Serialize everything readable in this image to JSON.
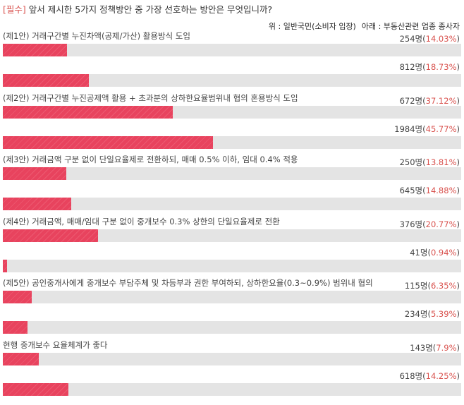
{
  "question": {
    "tag": "[필수]",
    "text": "앞서 제시한 5가지 정책방안 중 가장 선호하는 방안은 무엇입니까?"
  },
  "legend": {
    "upper_label": "위 : 일반국민(소비자 입장)",
    "lower_label": "아래 : 부동산관련 업종 종사자"
  },
  "colors": {
    "bar": "#e8435e",
    "track": "#e4e4e4",
    "percent": "#d9534f"
  },
  "chart_data": {
    "type": "bar",
    "orientation": "horizontal",
    "xlim": [
      0,
      100
    ],
    "categories": [
      "(제1안) 거래구간별 누진차액(공제/가산) 활용방식 도입",
      "(제2안) 거래구간별 누진공제액 활용 + 초과분의 상하한요율범위내 협의 혼용방식 도입",
      "(제3안) 거래금액 구분 없이 단일요율제로 전환하되, 매매 0.5% 이하, 임대 0.4% 적용",
      "(제4안) 거래금액, 매매/임대 구분 없이 중개보수 0.3% 상한의 단일요율제로 전환",
      "(제5안) 공인중개사에게 중개보수 부담주체 및 차등부과 권한 부여하되, 상하한요율(0.3~0.9%) 범위내 협의",
      "현행 중개보수 요율체계가 좋다"
    ],
    "series": [
      {
        "name": "일반국민(소비자 입장)",
        "counts": [
          "254명",
          "672명",
          "250명",
          "376명",
          "115명",
          "143명"
        ],
        "percents": [
          "14.03%",
          "37.12%",
          "13.81%",
          "20.77%",
          "6.35%",
          "7.9%"
        ],
        "values": [
          14.03,
          37.12,
          13.81,
          20.77,
          6.35,
          7.9
        ]
      },
      {
        "name": "부동산관련 업종 종사자",
        "counts": [
          "812명",
          "1984명",
          "645명",
          "41명",
          "234명",
          "618명"
        ],
        "percents": [
          "18.73%",
          "45.77%",
          "14.88%",
          "0.94%",
          "5.39%",
          "14.25%"
        ],
        "values": [
          18.73,
          45.77,
          14.88,
          0.94,
          5.39,
          14.25
        ]
      }
    ]
  }
}
